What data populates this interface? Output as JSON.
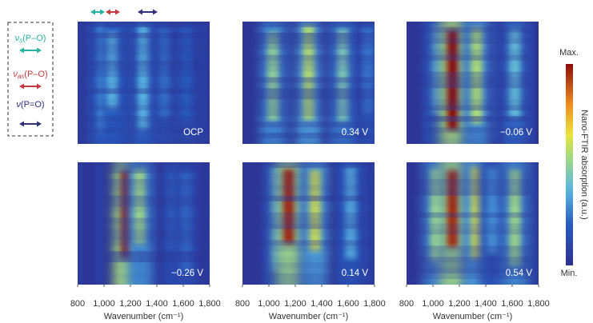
{
  "legend": [
    {
      "symbol": "ν",
      "subscript": "s",
      "text": "(P–O)",
      "color": "#27b3a2"
    },
    {
      "symbol": "ν",
      "subscript": "as",
      "text": "(P–O)",
      "color": "#c43c3f"
    },
    {
      "symbol": "ν",
      "text": "(P=O)",
      "color": "#2e2f7d"
    }
  ],
  "colorbar": {
    "label": "Nano-FTIR absorption (a.u.)",
    "zlim": [
      0,
      1
    ],
    "ticks": [
      {
        "value": 1,
        "label": "Max."
      },
      {
        "value": 0,
        "label": "Min."
      }
    ]
  },
  "chart_data": [
    {
      "type": "heatmap",
      "label": "OCP",
      "xlim": [
        800,
        1800
      ],
      "x": [
        1000,
        1060,
        1300,
        1460,
        1620
      ],
      "values": [
        0.38,
        0.36,
        0.38,
        0.24,
        0.2
      ]
    },
    {
      "type": "heatmap",
      "label": "0.34 V",
      "xlim": [
        800,
        1800
      ],
      "x": [
        1030,
        1300,
        1560,
        1750
      ],
      "values": [
        0.5,
        0.56,
        0.45,
        0.25
      ]
    },
    {
      "type": "heatmap",
      "label": "−0.06 V",
      "xlim": [
        800,
        1800
      ],
      "x": [
        1030,
        1150,
        1330,
        1620
      ],
      "values": [
        0.3,
        1.0,
        0.55,
        0.4
      ]
    },
    {
      "type": "heatmap",
      "label": "−0.26 V",
      "xlim": [
        800,
        1800
      ],
      "x": [
        1170,
        1270,
        1530,
        1620
      ],
      "values": [
        1.0,
        0.52,
        0.22,
        0.22
      ],
      "xlabel": "Wavenumber (cm⁻¹)",
      "xticks": [
        800,
        {
          "value": 1000,
          "label": "1,000"
        },
        {
          "value": 1200,
          "label": "1,200"
        },
        {
          "value": 1400,
          "label": "1,400"
        },
        {
          "value": 1600,
          "label": "1,600"
        },
        {
          "value": 1800,
          "label": "1,800"
        }
      ]
    },
    {
      "type": "heatmap",
      "label": "0.14 V",
      "xlim": [
        800,
        1800
      ],
      "x": [
        1060,
        1150,
        1350,
        1620
      ],
      "values": [
        0.3,
        0.95,
        0.6,
        0.35
      ],
      "xlabel": "Wavenumber (cm⁻¹)",
      "xticks": [
        800,
        {
          "value": 1000,
          "label": "1,000"
        },
        {
          "value": 1200,
          "label": "1,200"
        },
        {
          "value": 1400,
          "label": "1,400"
        },
        {
          "value": 1600,
          "label": "1,600"
        },
        {
          "value": 1800,
          "label": "1,800"
        }
      ]
    },
    {
      "type": "heatmap",
      "label": "0.54 V",
      "xlim": [
        800,
        1800
      ],
      "x": [
        1020,
        1150,
        1330,
        1450,
        1620
      ],
      "values": [
        0.5,
        0.95,
        0.62,
        0.3,
        0.52
      ],
      "xlabel": "Wavenumber (cm⁻¹)",
      "xticks": [
        800,
        {
          "value": 1000,
          "label": "1,000"
        },
        {
          "value": 1200,
          "label": "1,200"
        },
        {
          "value": 1400,
          "label": "1,400"
        },
        {
          "value": 1600,
          "label": "1,600"
        },
        {
          "value": 1800,
          "label": "1,800"
        }
      ]
    }
  ]
}
